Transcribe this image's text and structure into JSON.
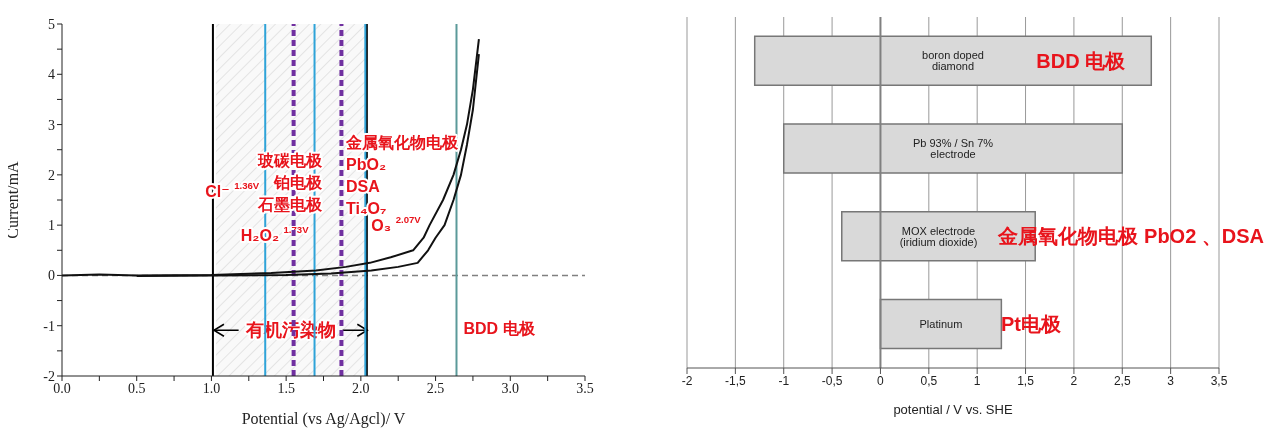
{
  "chart_data": [
    {
      "type": "line",
      "xlabel": "Potential (vs Ag/Agcl)/ V",
      "ylabel": "Current/mA",
      "xlim": [
        0,
        3.5
      ],
      "ylim": [
        -2,
        5
      ],
      "xticks": [
        {
          "value": 0,
          "label": "0.0"
        },
        {
          "value": 0.25,
          "label": null
        },
        {
          "value": 0.5,
          "label": "0.5"
        },
        {
          "value": 0.75,
          "label": null
        },
        {
          "value": 1,
          "label": "1.0"
        },
        {
          "value": 1.25,
          "label": null
        },
        {
          "value": 1.5,
          "label": "1.5"
        },
        {
          "value": 1.75,
          "label": null
        },
        {
          "value": 2,
          "label": "2.0"
        },
        {
          "value": 2.25,
          "label": null
        },
        {
          "value": 2.5,
          "label": "2.5"
        },
        {
          "value": 2.75,
          "label": null
        },
        {
          "value": 3,
          "label": "3.0"
        },
        {
          "value": 3.25,
          "label": null
        },
        {
          "value": 3.5,
          "label": "3.5"
        }
      ],
      "yticks": [
        -2,
        {
          "value": -1.5,
          "label": null
        },
        -1,
        {
          "value": -0.5,
          "label": null
        },
        0,
        {
          "value": 0.5,
          "label": null
        },
        1,
        {
          "value": 1.5,
          "label": null
        },
        2,
        {
          "value": 2.5,
          "label": null
        },
        3,
        {
          "value": 3.5,
          "label": null
        },
        4,
        {
          "value": 4.5,
          "label": null
        },
        5
      ],
      "grid": false,
      "legend": false,
      "series": [
        {
          "color": "#111111",
          "x": [
            0,
            0.25,
            0.5,
            1.0,
            1.4,
            1.7,
            1.9,
            2.06,
            2.2,
            2.35,
            2.42,
            2.46,
            2.55,
            2.62,
            2.67,
            2.71,
            2.75,
            2.79
          ],
          "values": [
            0,
            0.02,
            0,
            0.01,
            0.05,
            0.1,
            0.17,
            0.25,
            0.36,
            0.5,
            0.75,
            1.0,
            1.5,
            2.0,
            2.5,
            3.0,
            3.7,
            4.7
          ]
        },
        {
          "color": "#111111",
          "x": [
            0.5,
            1.0,
            1.5,
            1.8,
            2.07,
            2.25,
            2.38,
            2.45,
            2.5,
            2.56,
            2.62,
            2.67,
            2.71,
            2.75,
            2.79
          ],
          "values": [
            -0.01,
            0,
            0.01,
            0.04,
            0.1,
            0.17,
            0.25,
            0.5,
            0.75,
            1.0,
            1.5,
            2.0,
            2.6,
            3.3,
            4.4
          ]
        }
      ],
      "ref_lines": [
        {
          "axis": "y",
          "value": 0,
          "color": "#808080",
          "line_style": "dashed"
        },
        {
          "axis": "x",
          "value": 1.01,
          "color": "#000000",
          "line_style": "solid"
        },
        {
          "axis": "x",
          "value": 2.04,
          "color": "#000000",
          "line_style": "solid"
        },
        {
          "axis": "x",
          "value": 1.36,
          "color": "#2ea3d8",
          "line_style": "solid",
          "label": "Cl⁻ $^{1.36V}$"
        },
        {
          "axis": "x",
          "value": 1.69,
          "color": "#2ea3d8",
          "line_style": "solid",
          "label": "H₂O₂ $^{1.73V}$"
        },
        {
          "axis": "x",
          "value": 2.03,
          "color": "#2ea3d8",
          "line_style": "solid",
          "label": "O₃ $^{2.07V}$"
        },
        {
          "axis": "x",
          "value": 1.55,
          "color": "#7030a0",
          "line_style": "dashed"
        },
        {
          "axis": "x",
          "value": 1.87,
          "color": "#7030a0",
          "line_style": "dashed"
        },
        {
          "axis": "x",
          "value": 2.64,
          "color": "#5b9a9a",
          "line_style": "solid",
          "label": "BDD 电极"
        }
      ],
      "bands": [
        {
          "axis": "x",
          "from": 1.03,
          "to": 2.03,
          "label": "有机污染物",
          "color": "#c8c8c8"
        }
      ],
      "annotations": [
        "玻碳电极",
        "铂电极",
        "石墨电极",
        "金属氧化物电极",
        "PbO₂",
        "DSA",
        "Ti₄O₇"
      ]
    },
    {
      "type": "bar",
      "orientation": "horizontal",
      "xlabel": "potential / V vs. SHE",
      "categories": [
        "boron doped diamond",
        "Pb 93% / Sn 7% electrode",
        "MOX electrode (iridium dioxide)",
        "Platinum"
      ],
      "base": [
        -1.3,
        -1.0,
        -0.4,
        0
      ],
      "values": [
        4.1,
        3.5,
        2.0,
        1.25
      ],
      "color": "#d9d9d9",
      "xlim": [
        -2,
        3.5
      ],
      "xticks": [
        -2,
        {
          "value": -1.5,
          "label": "-1,5"
        },
        -1,
        {
          "value": -0.5,
          "label": "-0,5"
        },
        0,
        {
          "value": 0.5,
          "label": "0,5"
        },
        1,
        {
          "value": 1.5,
          "label": "1,5"
        },
        2,
        {
          "value": 2.5,
          "label": "2,5"
        },
        3,
        {
          "value": 3.5,
          "label": "3,5"
        }
      ],
      "grid": "x",
      "legend": false,
      "ref_lines": [
        {
          "axis": "x",
          "value": 0,
          "color": "#808080",
          "line_style": "solid"
        }
      ],
      "value_labels": [
        "BDD 电极",
        null,
        "金属氧化物电极 PbO2 、DSA",
        "Pt电极"
      ]
    }
  ]
}
